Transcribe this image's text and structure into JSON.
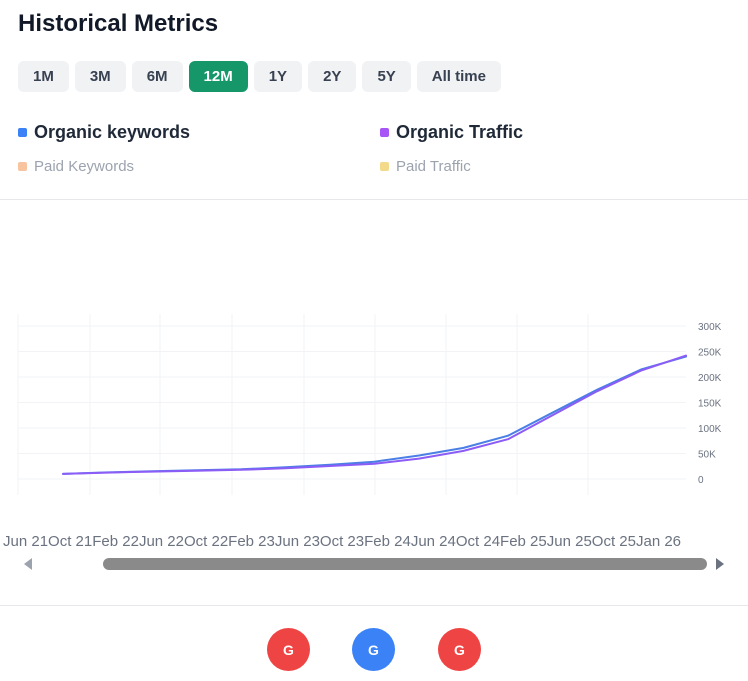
{
  "header": {
    "title": "Historical Metrics"
  },
  "ranges": [
    {
      "label": "1M",
      "active": false
    },
    {
      "label": "3M",
      "active": false
    },
    {
      "label": "6M",
      "active": false
    },
    {
      "label": "12M",
      "active": true
    },
    {
      "label": "1Y",
      "active": false
    },
    {
      "label": "2Y",
      "active": false
    },
    {
      "label": "5Y",
      "active": false
    },
    {
      "label": "All time",
      "active": false
    }
  ],
  "legend": [
    {
      "label": "Organic keywords",
      "color": "#3b82f6",
      "enabled": true
    },
    {
      "label": "Organic Traffic",
      "color": "#a855f7",
      "enabled": true
    },
    {
      "label": "Paid Keywords",
      "color": "#f8c4a0",
      "enabled": false
    },
    {
      "label": "Paid Traffic",
      "color": "#f3d98a",
      "enabled": false
    }
  ],
  "chart_data": {
    "type": "line",
    "x": [
      "Jun 21",
      "Oct 21",
      "Feb 22",
      "Jun 22",
      "Oct 22",
      "Feb 23",
      "Jun 23",
      "Oct 23",
      "Feb 24",
      "Jun 24",
      "Oct 24",
      "Feb 25",
      "Jun 25",
      "Oct 25",
      "Jan 26"
    ],
    "y_tick_labels": [
      "0",
      "50K",
      "100K",
      "150K",
      "200K",
      "250K",
      "300K"
    ],
    "series": [
      {
        "name": "Organic keywords",
        "color": "#4a7fe6",
        "values": [
          10000,
          13000,
          15000,
          17000,
          19000,
          23000,
          28000,
          34000,
          46000,
          61000,
          85000,
          130000,
          175000,
          215000,
          240000
        ]
      },
      {
        "name": "Organic Traffic",
        "color": "#8b5cf6",
        "values": [
          10000,
          12500,
          14500,
          16000,
          18000,
          21000,
          25500,
          30000,
          40000,
          55000,
          78000,
          125000,
          172000,
          213000,
          242000
        ]
      }
    ],
    "grid": true,
    "legend": "top"
  },
  "xaxis": {
    "labels": [
      "Jun 21",
      "Oct 21",
      "Feb 22",
      "Jun 22",
      "Oct 22",
      "Feb 23",
      "Jun 23",
      "Oct 23",
      "Feb 24",
      "Jun 24",
      "Oct 24",
      "Feb 25",
      "Jun 25",
      "Oct 25",
      "Jan 26"
    ]
  },
  "engines": [
    {
      "label": "G",
      "color": "#ef4444"
    },
    {
      "label": "G",
      "color": "#3b82f6"
    },
    {
      "label": "G",
      "color": "#ef4444"
    }
  ]
}
